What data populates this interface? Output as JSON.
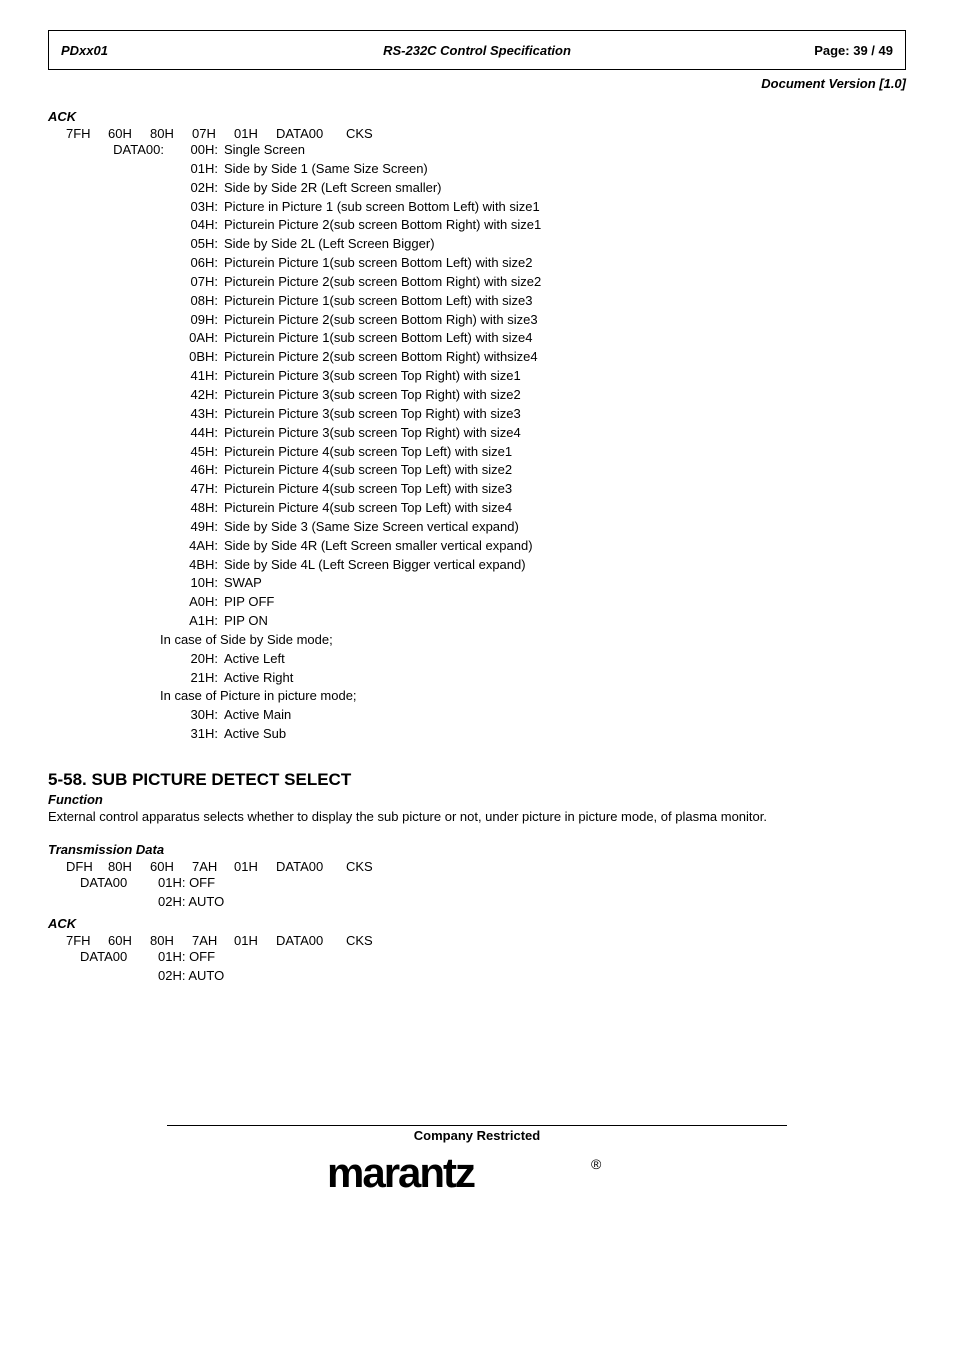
{
  "header": {
    "left": "PDxx01",
    "center": "RS-232C Control Specification",
    "right": "Page: 39 / 49",
    "version": "Document Version [1.0]"
  },
  "ack": {
    "label": "ACK",
    "bytes": [
      "7FH",
      "60H",
      "80H",
      "07H",
      "01H",
      "DATA00",
      "CKS"
    ],
    "data_key": "DATA00:",
    "codes": [
      {
        "c": "00H:",
        "d": "Single Screen"
      },
      {
        "c": "01H:",
        "d": "Side by Side 1 (Same Size Screen)"
      },
      {
        "c": "02H:",
        "d": "Side by Side 2R (Left Screen smaller)"
      },
      {
        "c": "03H:",
        "d": "Picture in Picture 1 (sub screen Bottom Left) with size1"
      },
      {
        "c": "04H:",
        "d": "Picturein Picture 2(sub screen Bottom Right) with size1"
      },
      {
        "c": "05H:",
        "d": "Side by Side 2L (Left Screen Bigger)"
      },
      {
        "c": "06H:",
        "d": "Picturein Picture 1(sub screen Bottom Left) with size2"
      },
      {
        "c": "07H:",
        "d": "Picturein Picture 2(sub screen Bottom Right) with size2"
      },
      {
        "c": "08H:",
        "d": "Picturein Picture 1(sub screen Bottom Left) with size3"
      },
      {
        "c": "09H:",
        "d": "Picturein Picture 2(sub screen Bottom Righ) with size3"
      },
      {
        "c": "0AH:",
        "d": "Picturein Picture 1(sub screen Bottom Left) with size4"
      },
      {
        "c": "0BH:",
        "d": "Picturein Picture 2(sub screen Bottom Right) withsize4"
      },
      {
        "c": "41H:",
        "d": "Picturein Picture 3(sub screen Top Right) with size1"
      },
      {
        "c": "42H:",
        "d": "Picturein Picture 3(sub screen Top Right) with size2"
      },
      {
        "c": "43H:",
        "d": "Picturein Picture 3(sub screen Top Right) with size3"
      },
      {
        "c": "44H:",
        "d": "Picturein Picture 3(sub screen Top Right) with size4"
      },
      {
        "c": "45H:",
        "d": "Picturein Picture 4(sub screen Top Left) with size1"
      },
      {
        "c": "46H:",
        "d": "Picturein Picture 4(sub screen Top Left) with size2"
      },
      {
        "c": "47H:",
        "d": "Picturein Picture 4(sub screen Top Left) with size3"
      },
      {
        "c": "48H:",
        "d": "Picturein Picture 4(sub screen Top Left) with size4"
      },
      {
        "c": "49H:",
        "d": "Side by Side 3 (Same Size Screen vertical expand)"
      },
      {
        "c": "4AH:",
        "d": "Side by Side 4R (Left Screen smaller vertical expand)"
      },
      {
        "c": "4BH:",
        "d": "Side by Side 4L (Left Screen Bigger vertical expand)"
      },
      {
        "c": "10H:",
        "d": "SWAP"
      },
      {
        "c": "A0H:",
        "d": "PIP OFF"
      },
      {
        "c": "A1H:",
        "d": "PIP ON"
      }
    ],
    "case1": "In case of Side by Side mode;",
    "case1_codes": [
      {
        "c": "20H:",
        "d": "Active Left"
      },
      {
        "c": "21H:",
        "d": "Active Right"
      }
    ],
    "case2": "In case of Picture in picture mode;",
    "case2_codes": [
      {
        "c": "30H:",
        "d": "Active Main"
      },
      {
        "c": "31H:",
        "d": "Active Sub"
      }
    ]
  },
  "section": {
    "heading": "5-58.  SUB PICTURE DETECT SELECT",
    "func_label": "Function",
    "func_text": "External control apparatus selects whether to display the sub picture or not, under picture in picture mode, of plasma monitor."
  },
  "tx": {
    "label": "Transmission Data",
    "bytes": [
      "DFH",
      "80H",
      "60H",
      "7AH",
      "01H",
      "DATA00",
      "CKS"
    ],
    "data_key": "DATA00",
    "rows": [
      {
        "c": "01H:",
        "d": "OFF"
      },
      {
        "c": "02H:",
        "d": "AUTO"
      }
    ]
  },
  "ack2": {
    "label": "ACK",
    "bytes": [
      "7FH",
      "60H",
      "80H",
      "7AH",
      "01H",
      "DATA00",
      "CKS"
    ],
    "data_key": "DATA00",
    "rows": [
      {
        "c": "01H:",
        "d": "OFF"
      },
      {
        "c": "02H:",
        "d": "AUTO"
      }
    ]
  },
  "footer": {
    "restricted": "Company Restricted"
  }
}
